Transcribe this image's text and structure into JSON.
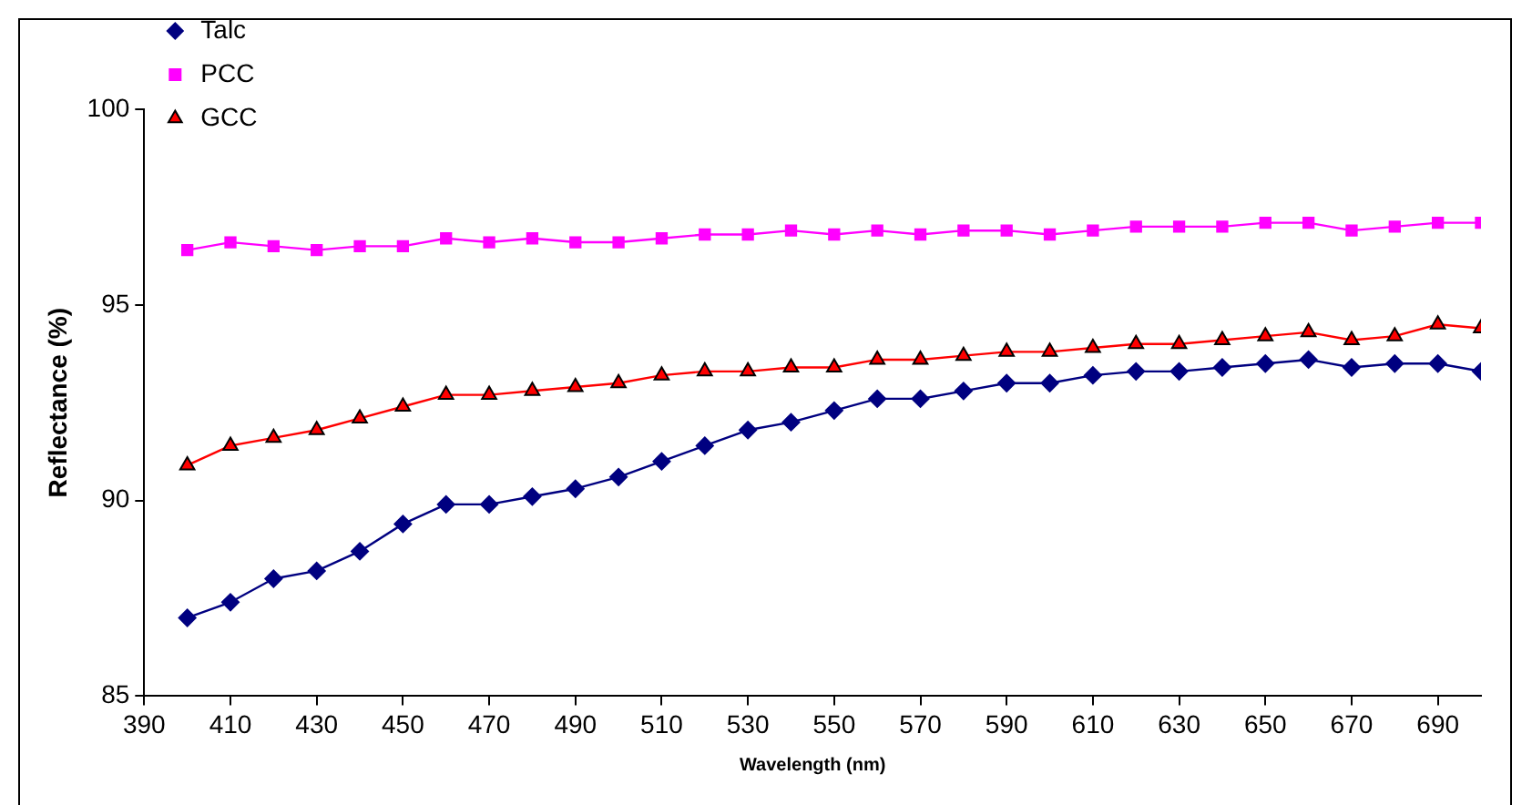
{
  "chart_data": {
    "type": "line",
    "xlabel": "Wavelength (nm)",
    "ylabel": "Reflectance (%)",
    "x": [
      400,
      410,
      420,
      430,
      440,
      450,
      460,
      470,
      480,
      490,
      500,
      510,
      520,
      530,
      540,
      550,
      560,
      570,
      580,
      590,
      600,
      610,
      620,
      630,
      640,
      650,
      660,
      670,
      680,
      690,
      700
    ],
    "xlim": [
      390,
      700
    ],
    "xticks": [
      390,
      410,
      430,
      450,
      470,
      490,
      510,
      530,
      550,
      570,
      590,
      610,
      630,
      650,
      670,
      690
    ],
    "ylim": [
      85,
      100
    ],
    "yticks": [
      85,
      90,
      95,
      100
    ],
    "grid": false,
    "legend": "top left",
    "series": [
      {
        "name": "Talc",
        "color": "#000080",
        "marker": "diamond",
        "values": [
          87.0,
          87.4,
          88.0,
          88.2,
          88.7,
          89.4,
          89.9,
          89.9,
          90.1,
          90.3,
          90.6,
          91.0,
          91.4,
          91.8,
          92.0,
          92.3,
          92.6,
          92.6,
          92.8,
          93.0,
          93.0,
          93.2,
          93.3,
          93.3,
          93.4,
          93.5,
          93.6,
          93.4,
          93.5,
          93.5,
          93.3
        ]
      },
      {
        "name": "PCC",
        "color": "#ff00ff",
        "marker": "square",
        "values": [
          96.4,
          96.6,
          96.5,
          96.4,
          96.5,
          96.5,
          96.7,
          96.6,
          96.7,
          96.6,
          96.6,
          96.7,
          96.8,
          96.8,
          96.9,
          96.8,
          96.9,
          96.8,
          96.9,
          96.9,
          96.8,
          96.9,
          97.0,
          97.0,
          97.0,
          97.1,
          97.1,
          96.9,
          97.0,
          97.1,
          97.1
        ]
      },
      {
        "name": "GCC",
        "color": "#ff0000",
        "marker": "triangle",
        "values": [
          90.9,
          91.4,
          91.6,
          91.8,
          92.1,
          92.4,
          92.7,
          92.7,
          92.8,
          92.9,
          93.0,
          93.2,
          93.3,
          93.3,
          93.4,
          93.4,
          93.6,
          93.6,
          93.7,
          93.8,
          93.8,
          93.9,
          94.0,
          94.0,
          94.1,
          94.2,
          94.3,
          94.1,
          94.2,
          94.5,
          94.4
        ]
      }
    ]
  }
}
